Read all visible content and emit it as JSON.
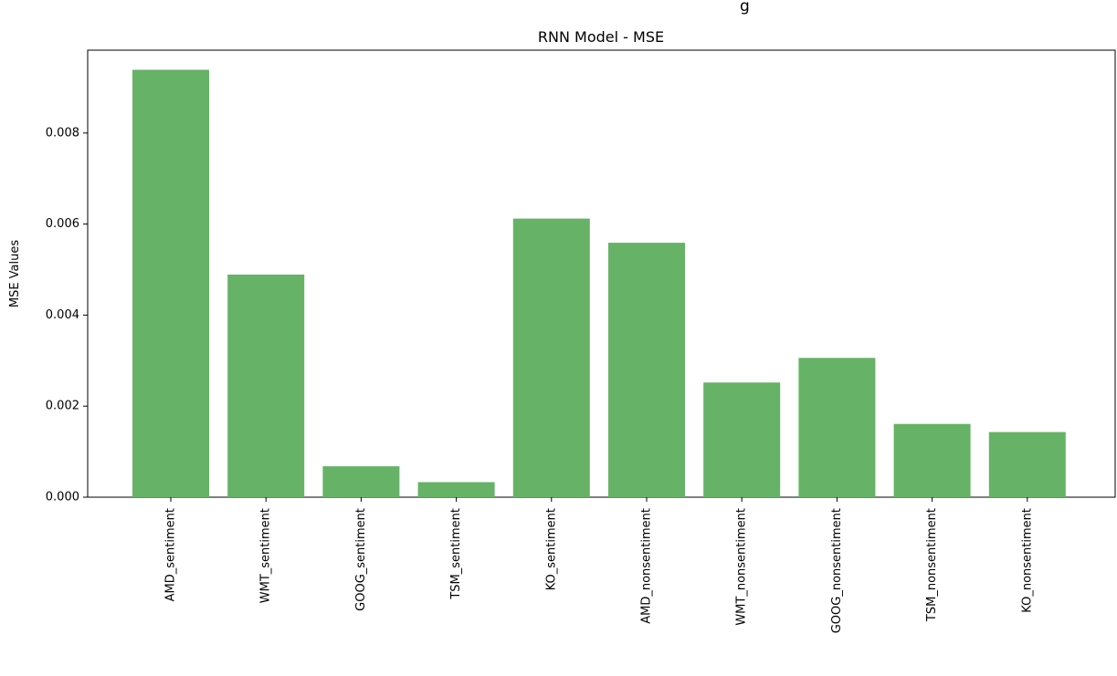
{
  "header_cut_text": "g",
  "chart_data": {
    "type": "bar",
    "title": "RNN Model - MSE",
    "xlabel": "",
    "ylabel": "MSE Values",
    "categories": [
      "AMD_sentiment",
      "WMT_sentiment",
      "GOOG_sentiment",
      "TSM_sentiment",
      "KO_sentiment",
      "AMD_nonsentiment",
      "WMT_nonsentiment",
      "GOOG_nonsentiment",
      "TSM_nonsentiment",
      "KO_nonsentiment"
    ],
    "values": [
      0.00939,
      0.00489,
      0.00068,
      0.00033,
      0.00612,
      0.00559,
      0.00252,
      0.00306,
      0.00161,
      0.00143
    ],
    "yticks": [
      "0.000",
      "0.002",
      "0.004",
      "0.006",
      "0.008"
    ],
    "ylim": [
      0,
      0.00982
    ],
    "grid": false,
    "bar_color": "#66b266"
  }
}
